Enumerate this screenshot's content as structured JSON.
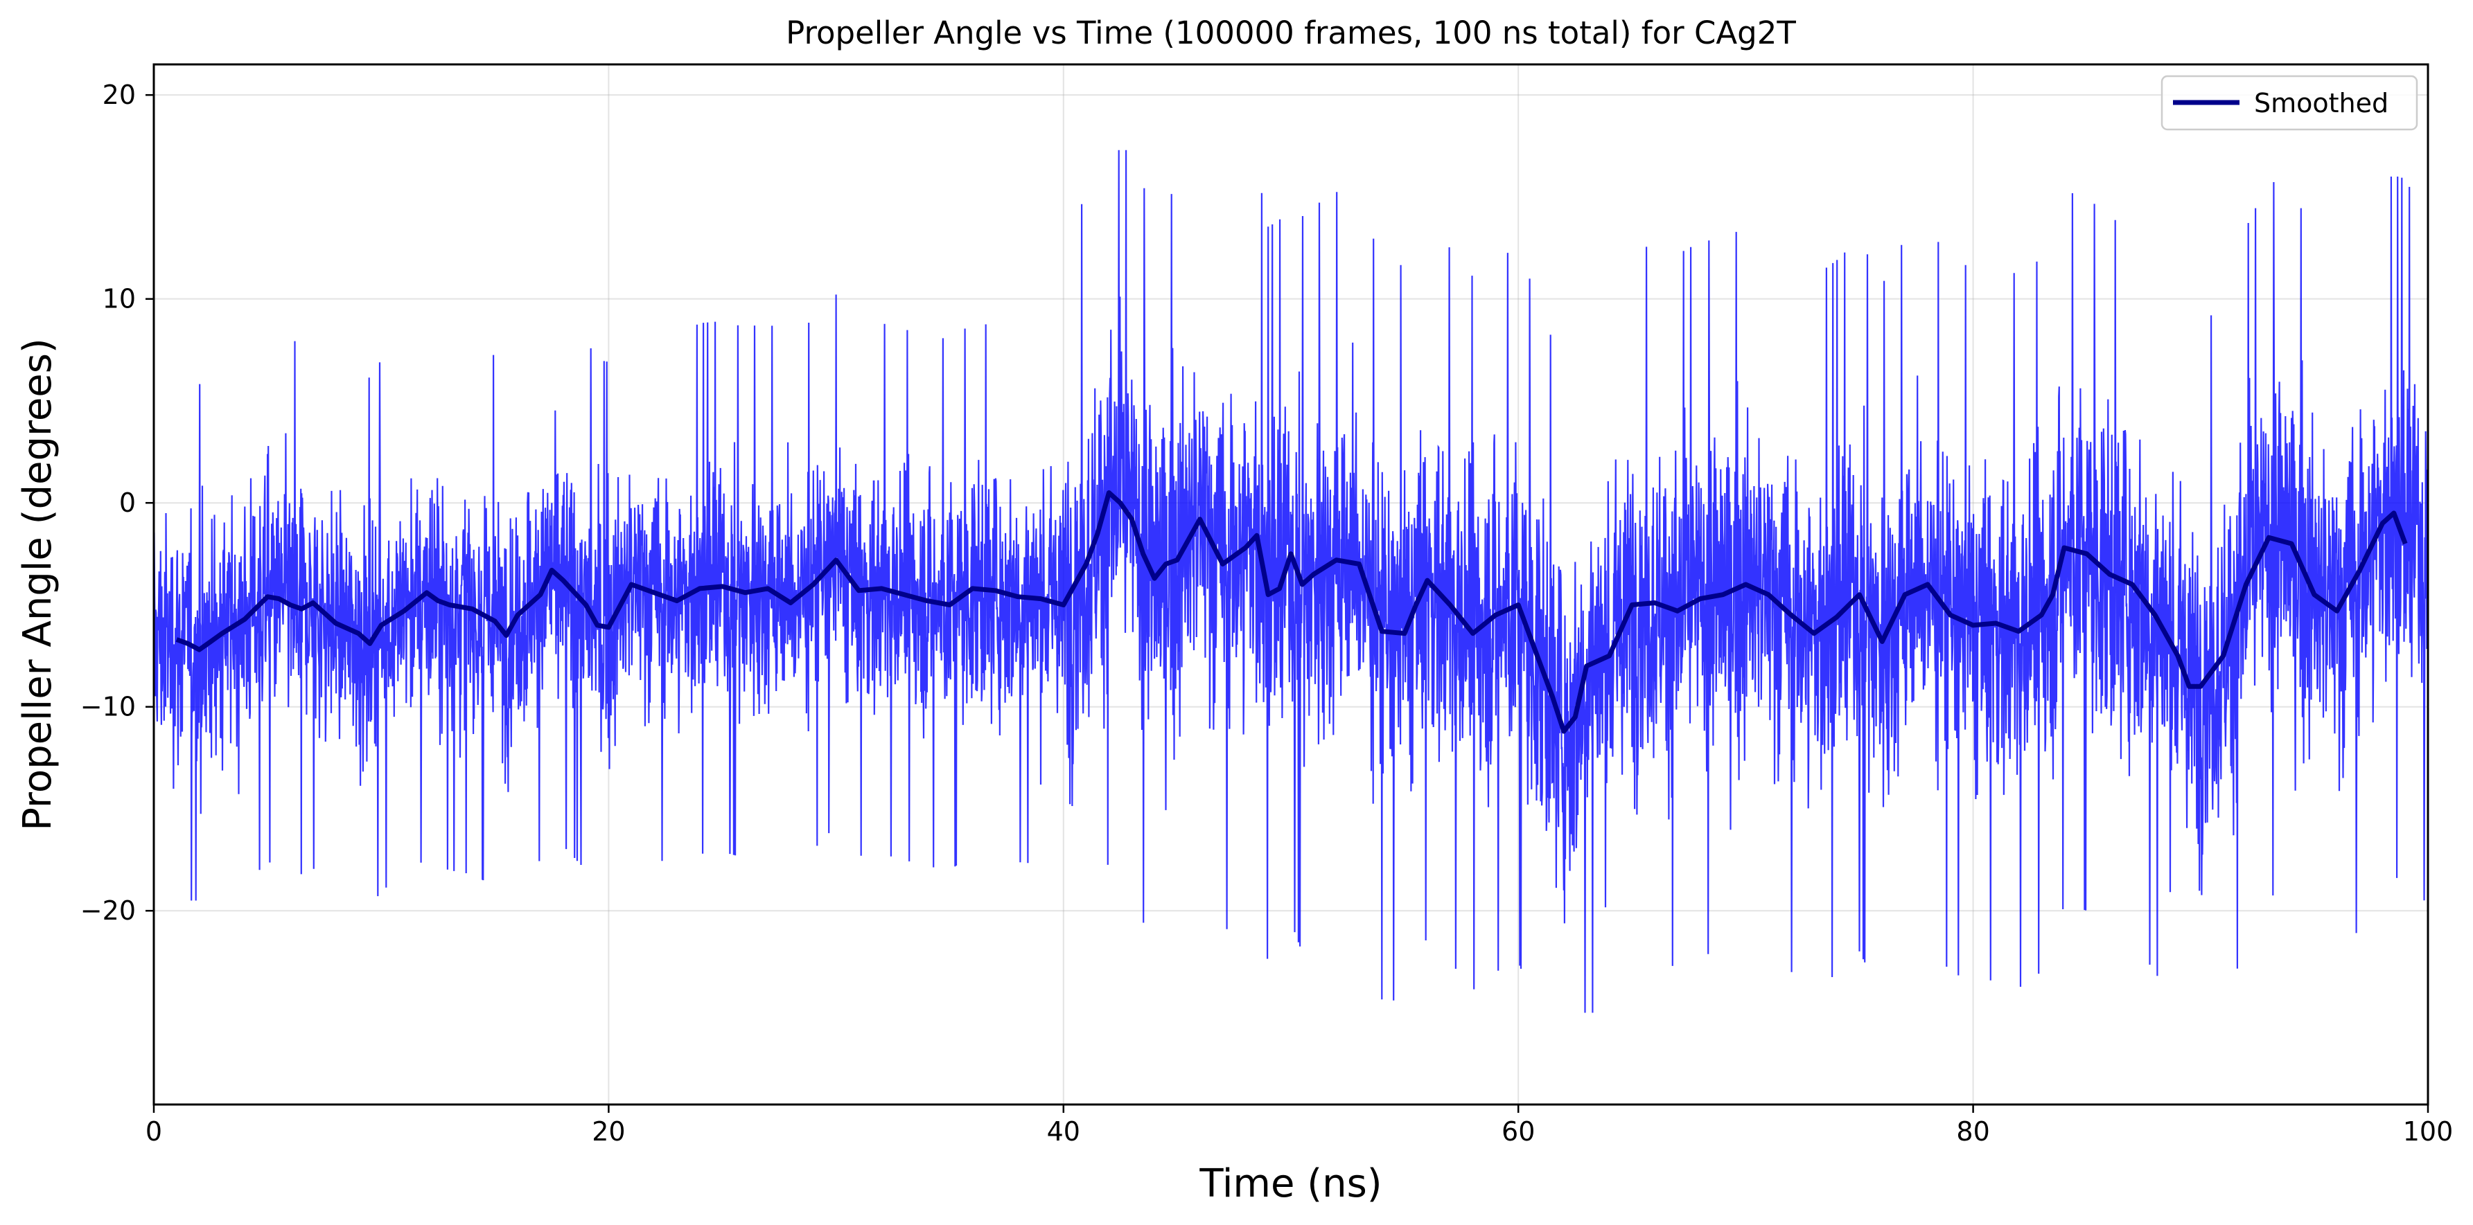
{
  "chart_data": {
    "type": "line",
    "title": "Propeller Angle vs Time (100000 frames, 100 ns total) for CAg2T",
    "xlabel": "Time (ns)",
    "ylabel": "Propeller Angle (degrees)",
    "xlim": [
      0,
      100
    ],
    "ylim": [
      -29.5,
      21.5
    ],
    "x_ticks": [
      0,
      20,
      40,
      60,
      80,
      100
    ],
    "y_ticks": [
      -20,
      -10,
      0,
      10,
      20
    ],
    "x_tick_labels": [
      "0",
      "20",
      "40",
      "60",
      "80",
      "100"
    ],
    "y_tick_labels": [
      "−20",
      "−10",
      "0",
      "10",
      "20"
    ],
    "grid": true,
    "legend_position": "top-right",
    "colors": {
      "raw": "#0000ff",
      "smoothed": "#00008b"
    },
    "series": [
      {
        "name": "",
        "role": "raw",
        "description_bands": [
          {
            "x": [
              0,
              40
            ],
            "mean": -5.2,
            "min": -19.5,
            "max": 11.0
          },
          {
            "x": [
              40,
              55
            ],
            "mean": -4.5,
            "min": -25.0,
            "max": 17.3
          },
          {
            "x": [
              55,
              100
            ],
            "mean": -5.0,
            "min": -25.0,
            "max": 16.0
          }
        ]
      },
      {
        "name": "Smoothed",
        "role": "smoothed",
        "x": [
          1,
          1.5,
          2,
          2.5,
          3,
          4,
          5,
          5.5,
          6,
          6.5,
          7,
          7.5,
          8,
          9,
          9.5,
          10,
          11,
          12,
          12.5,
          13,
          14,
          15,
          15.5,
          16,
          17,
          17.5,
          18,
          19,
          19.5,
          20,
          21,
          22,
          23,
          24,
          25,
          26,
          27,
          28,
          29,
          30,
          31,
          32,
          33,
          34,
          35,
          36,
          37,
          38,
          39,
          40,
          41,
          41.5,
          42,
          42.5,
          43,
          43.5,
          44,
          44.5,
          45,
          46,
          47,
          48,
          48.5,
          49,
          49.5,
          50,
          50.5,
          51,
          52,
          53,
          54,
          55,
          55.5,
          56,
          57,
          58,
          59,
          60,
          61,
          61.5,
          62,
          62.5,
          63,
          64,
          65,
          66,
          67,
          68,
          69,
          70,
          71,
          72,
          73,
          74,
          75,
          76,
          77,
          78,
          79,
          80,
          81,
          82,
          83,
          83.5,
          84,
          85,
          86,
          87,
          88,
          89,
          89.5,
          90,
          91,
          92,
          93,
          94,
          95,
          96,
          97,
          98,
          98.5,
          99
        ],
        "values": [
          -6.7,
          -6.9,
          -7.2,
          -6.8,
          -6.4,
          -5.7,
          -4.6,
          -4.7,
          -5.0,
          -5.2,
          -4.9,
          -5.4,
          -5.9,
          -6.4,
          -6.9,
          -6.0,
          -5.3,
          -4.4,
          -4.8,
          -5.0,
          -5.2,
          -5.8,
          -6.5,
          -5.5,
          -4.5,
          -3.3,
          -3.8,
          -5.0,
          -6.0,
          -6.1,
          -4.0,
          -4.4,
          -4.8,
          -4.2,
          -4.1,
          -4.4,
          -4.2,
          -4.9,
          -4.0,
          -2.8,
          -4.3,
          -4.2,
          -4.5,
          -4.8,
          -5.0,
          -4.2,
          -4.3,
          -4.6,
          -4.7,
          -5.0,
          -3.0,
          -1.5,
          0.5,
          0.0,
          -0.8,
          -2.5,
          -3.7,
          -3.0,
          -2.8,
          -0.8,
          -3.0,
          -2.2,
          -1.6,
          -4.5,
          -4.2,
          -2.5,
          -4.0,
          -3.5,
          -2.8,
          -3.0,
          -6.3,
          -6.4,
          -5.0,
          -3.8,
          -5.0,
          -6.4,
          -5.5,
          -5.0,
          -8.0,
          -9.5,
          -11.2,
          -10.5,
          -8.0,
          -7.5,
          -5.0,
          -4.9,
          -5.3,
          -4.7,
          -4.5,
          -4.0,
          -4.5,
          -5.5,
          -6.4,
          -5.6,
          -4.5,
          -6.8,
          -4.5,
          -4.0,
          -5.5,
          -6.0,
          -5.9,
          -6.3,
          -5.5,
          -4.5,
          -2.2,
          -2.5,
          -3.5,
          -4.0,
          -5.5,
          -7.5,
          -9.0,
          -9.0,
          -7.5,
          -4.0,
          -1.7,
          -2.0,
          -4.5,
          -5.3,
          -3.3,
          -1.0,
          -0.5,
          -2.0
        ]
      }
    ]
  }
}
